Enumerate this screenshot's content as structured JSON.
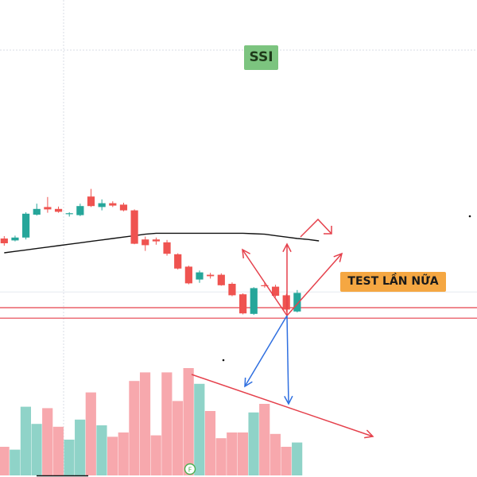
{
  "ticker": {
    "label": "SSI",
    "bg": "#7cc47f"
  },
  "note": {
    "label": "TEST LẦN NỮA",
    "bg": "#f5a742"
  },
  "footer_marker": {
    "label": "F"
  },
  "colors": {
    "up": "#26a69a",
    "down": "#ef5350",
    "volume_up": "#8fd3c8",
    "volume_down": "#f7a8ad",
    "ma": "#111111",
    "support_lines": "#e5414c",
    "red_arrows": "#e5414c",
    "blue_arrows": "#2f6fe0",
    "grid": "#d8dde6"
  },
  "chart_data": {
    "type": "candlestick",
    "title": "",
    "xlabel": "",
    "ylabel": "",
    "grid": true,
    "price_range": [
      0,
      100
    ],
    "volume_range": [
      0,
      100
    ],
    "candles": [
      {
        "o": 50,
        "h": 50.5,
        "l": 48.5,
        "c": 49
      },
      {
        "o": 49.6,
        "h": 50.6,
        "l": 49.4,
        "c": 50.2
      },
      {
        "o": 50.2,
        "h": 55.5,
        "l": 49.8,
        "c": 55.2
      },
      {
        "o": 55,
        "h": 57.3,
        "l": 54.8,
        "c": 56.2
      },
      {
        "o": 56.6,
        "h": 58.7,
        "l": 55.4,
        "c": 56.1
      },
      {
        "o": 56.2,
        "h": 56.7,
        "l": 55.4,
        "c": 55.6
      },
      {
        "o": 55.1,
        "h": 55.5,
        "l": 54.6,
        "c": 55.3
      },
      {
        "o": 54.9,
        "h": 57.3,
        "l": 54.7,
        "c": 56.8
      },
      {
        "o": 58.8,
        "h": 60.4,
        "l": 56.6,
        "c": 56.8
      },
      {
        "o": 56.6,
        "h": 58.2,
        "l": 55.9,
        "c": 57.4
      },
      {
        "o": 57.4,
        "h": 57.8,
        "l": 56.6,
        "c": 56.9
      },
      {
        "o": 57.1,
        "h": 57.5,
        "l": 55.7,
        "c": 55.9
      },
      {
        "o": 55.9,
        "h": 56.1,
        "l": 48.8,
        "c": 48.9
      },
      {
        "o": 49.8,
        "h": 50.4,
        "l": 47.4,
        "c": 48.6
      },
      {
        "o": 49.8,
        "h": 50.2,
        "l": 48.7,
        "c": 49.4
      },
      {
        "o": 49.2,
        "h": 49.7,
        "l": 46.4,
        "c": 46.8
      },
      {
        "o": 46.7,
        "h": 46.9,
        "l": 43.5,
        "c": 43.7
      },
      {
        "o": 44.1,
        "h": 44.3,
        "l": 40.4,
        "c": 40.6
      },
      {
        "o": 41.4,
        "h": 43.3,
        "l": 40.7,
        "c": 42.9
      },
      {
        "o": 42.4,
        "h": 42.8,
        "l": 41.6,
        "c": 42.1
      },
      {
        "o": 42.4,
        "h": 42.7,
        "l": 40.1,
        "c": 40.2
      },
      {
        "o": 40.5,
        "h": 40.8,
        "l": 37.9,
        "c": 38.1
      },
      {
        "o": 38.3,
        "h": 38.5,
        "l": 34.1,
        "c": 34.3
      },
      {
        "o": 34.2,
        "h": 39.8,
        "l": 34.0,
        "c": 39.6
      },
      {
        "o": 40.2,
        "h": 40.8,
        "l": 39.7,
        "c": 40.1
      },
      {
        "o": 39.9,
        "h": 40.3,
        "l": 37.7,
        "c": 38.0
      },
      {
        "o": 38.1,
        "h": 38.4,
        "l": 34.6,
        "c": 35.1
      },
      {
        "o": 34.7,
        "h": 39.2,
        "l": 34.5,
        "c": 38.6
      }
    ],
    "volume": [
      20,
      18,
      48,
      36,
      47,
      34,
      25,
      39,
      58,
      35,
      27,
      30,
      66,
      72,
      28,
      72,
      52,
      75,
      64,
      45,
      26,
      30,
      30,
      44,
      50,
      29,
      20,
      23
    ],
    "moving_average": [
      47,
      47.3,
      47.6,
      47.9,
      48.2,
      48.5,
      48.8,
      49.1,
      49.4,
      49.7,
      50,
      50.3,
      50.6,
      50.9,
      51.1,
      51.1,
      51.1,
      51.1,
      51.1,
      51.1,
      51.1,
      51.1,
      51.1,
      51.0,
      50.9,
      50.6,
      50.3,
      50.0
    ],
    "ma_extension": [
      49.8,
      49.5
    ],
    "support_levels": [
      35.5,
      33.3
    ],
    "support_levels_extra": [
      38.8
    ]
  }
}
